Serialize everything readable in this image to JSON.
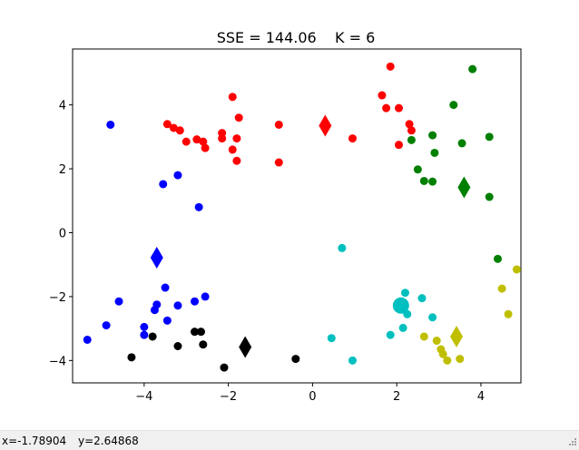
{
  "chart_data": {
    "type": "scatter",
    "title": "SSE = 144.06    K = 6",
    "xlabel": "",
    "ylabel": "",
    "xlim": [
      -5.7,
      4.95
    ],
    "ylim": [
      -4.7,
      5.75
    ],
    "xticks": [
      -4,
      -2,
      0,
      2,
      4
    ],
    "yticks": [
      -4,
      -2,
      0,
      2,
      4
    ],
    "xtick_labels": [
      "−4",
      "−2",
      "0",
      "2",
      "4"
    ],
    "ytick_labels": [
      "−4",
      "−2",
      "0",
      "2",
      "4"
    ],
    "grid": false,
    "clusters": [
      {
        "color": "#ff0000",
        "centroid": [
          0.3,
          3.35
        ],
        "points": [
          [
            -3.45,
            3.4
          ],
          [
            -3.3,
            3.28
          ],
          [
            -3.15,
            3.2
          ],
          [
            -3.0,
            2.85
          ],
          [
            -2.75,
            2.92
          ],
          [
            -2.6,
            2.85
          ],
          [
            -2.55,
            2.65
          ],
          [
            -2.15,
            3.12
          ],
          [
            -2.15,
            2.95
          ],
          [
            -1.9,
            4.25
          ],
          [
            -1.75,
            3.6
          ],
          [
            -1.8,
            2.95
          ],
          [
            -1.9,
            2.6
          ],
          [
            -1.8,
            2.25
          ],
          [
            -0.8,
            3.38
          ],
          [
            -0.8,
            2.2
          ],
          [
            0.95,
            2.95
          ],
          [
            1.65,
            4.3
          ],
          [
            1.75,
            3.9
          ],
          [
            1.85,
            5.2
          ],
          [
            2.05,
            3.9
          ],
          [
            2.05,
            2.75
          ],
          [
            2.3,
            3.4
          ],
          [
            2.35,
            3.2
          ]
        ]
      },
      {
        "color": "#008000",
        "centroid": [
          3.6,
          1.42
        ],
        "points": [
          [
            3.8,
            5.12
          ],
          [
            3.35,
            4.0
          ],
          [
            2.85,
            3.05
          ],
          [
            4.2,
            3.0
          ],
          [
            3.55,
            2.8
          ],
          [
            2.35,
            2.9
          ],
          [
            2.9,
            2.5
          ],
          [
            2.5,
            1.98
          ],
          [
            2.65,
            1.62
          ],
          [
            2.85,
            1.6
          ],
          [
            4.2,
            1.12
          ],
          [
            4.4,
            -0.82
          ]
        ]
      },
      {
        "color": "#0000ff",
        "centroid": [
          -3.7,
          -0.78
        ],
        "points": [
          [
            -4.8,
            3.38
          ],
          [
            -3.2,
            1.8
          ],
          [
            -3.55,
            1.52
          ],
          [
            -2.7,
            0.8
          ],
          [
            -3.5,
            -1.72
          ],
          [
            -2.55,
            -2.0
          ],
          [
            -4.6,
            -2.15
          ],
          [
            -3.7,
            -2.25
          ],
          [
            -3.2,
            -2.28
          ],
          [
            -2.8,
            -2.15
          ],
          [
            -3.75,
            -2.42
          ],
          [
            -3.45,
            -2.75
          ],
          [
            -4.9,
            -2.9
          ],
          [
            -4.0,
            -2.95
          ],
          [
            -4.0,
            -3.2
          ],
          [
            -5.35,
            -3.35
          ]
        ]
      },
      {
        "color": "#000000",
        "centroid": [
          -1.6,
          -3.58
        ],
        "points": [
          [
            -2.8,
            -3.1
          ],
          [
            -2.65,
            -3.1
          ],
          [
            -3.8,
            -3.25
          ],
          [
            -3.2,
            -3.55
          ],
          [
            -2.6,
            -3.5
          ],
          [
            -4.3,
            -3.9
          ],
          [
            -2.1,
            -4.22
          ],
          [
            -0.4,
            -3.95
          ]
        ]
      },
      {
        "color": "#00bfbf",
        "centroid": [
          2.1,
          -2.28
        ],
        "points": [
          [
            0.7,
            -0.48
          ],
          [
            2.2,
            -1.88
          ],
          [
            2.6,
            -2.05
          ],
          [
            2.25,
            -2.55
          ],
          [
            2.85,
            -2.65
          ],
          [
            2.15,
            -2.98
          ],
          [
            1.85,
            -3.2
          ],
          [
            0.45,
            -3.3
          ],
          [
            0.95,
            -4.0
          ]
        ]
      },
      {
        "color": "#bfbf00",
        "centroid": [
          3.42,
          -3.25
        ],
        "points": [
          [
            4.85,
            -1.15
          ],
          [
            4.5,
            -1.75
          ],
          [
            4.65,
            -2.55
          ],
          [
            2.65,
            -3.25
          ],
          [
            2.95,
            -3.38
          ],
          [
            3.05,
            -3.65
          ],
          [
            3.1,
            -3.8
          ],
          [
            3.2,
            -4.0
          ],
          [
            3.5,
            -3.95
          ]
        ]
      }
    ]
  },
  "statusbar": {
    "x_readout": "x=-1.78904",
    "y_readout": "y=2.64868"
  }
}
